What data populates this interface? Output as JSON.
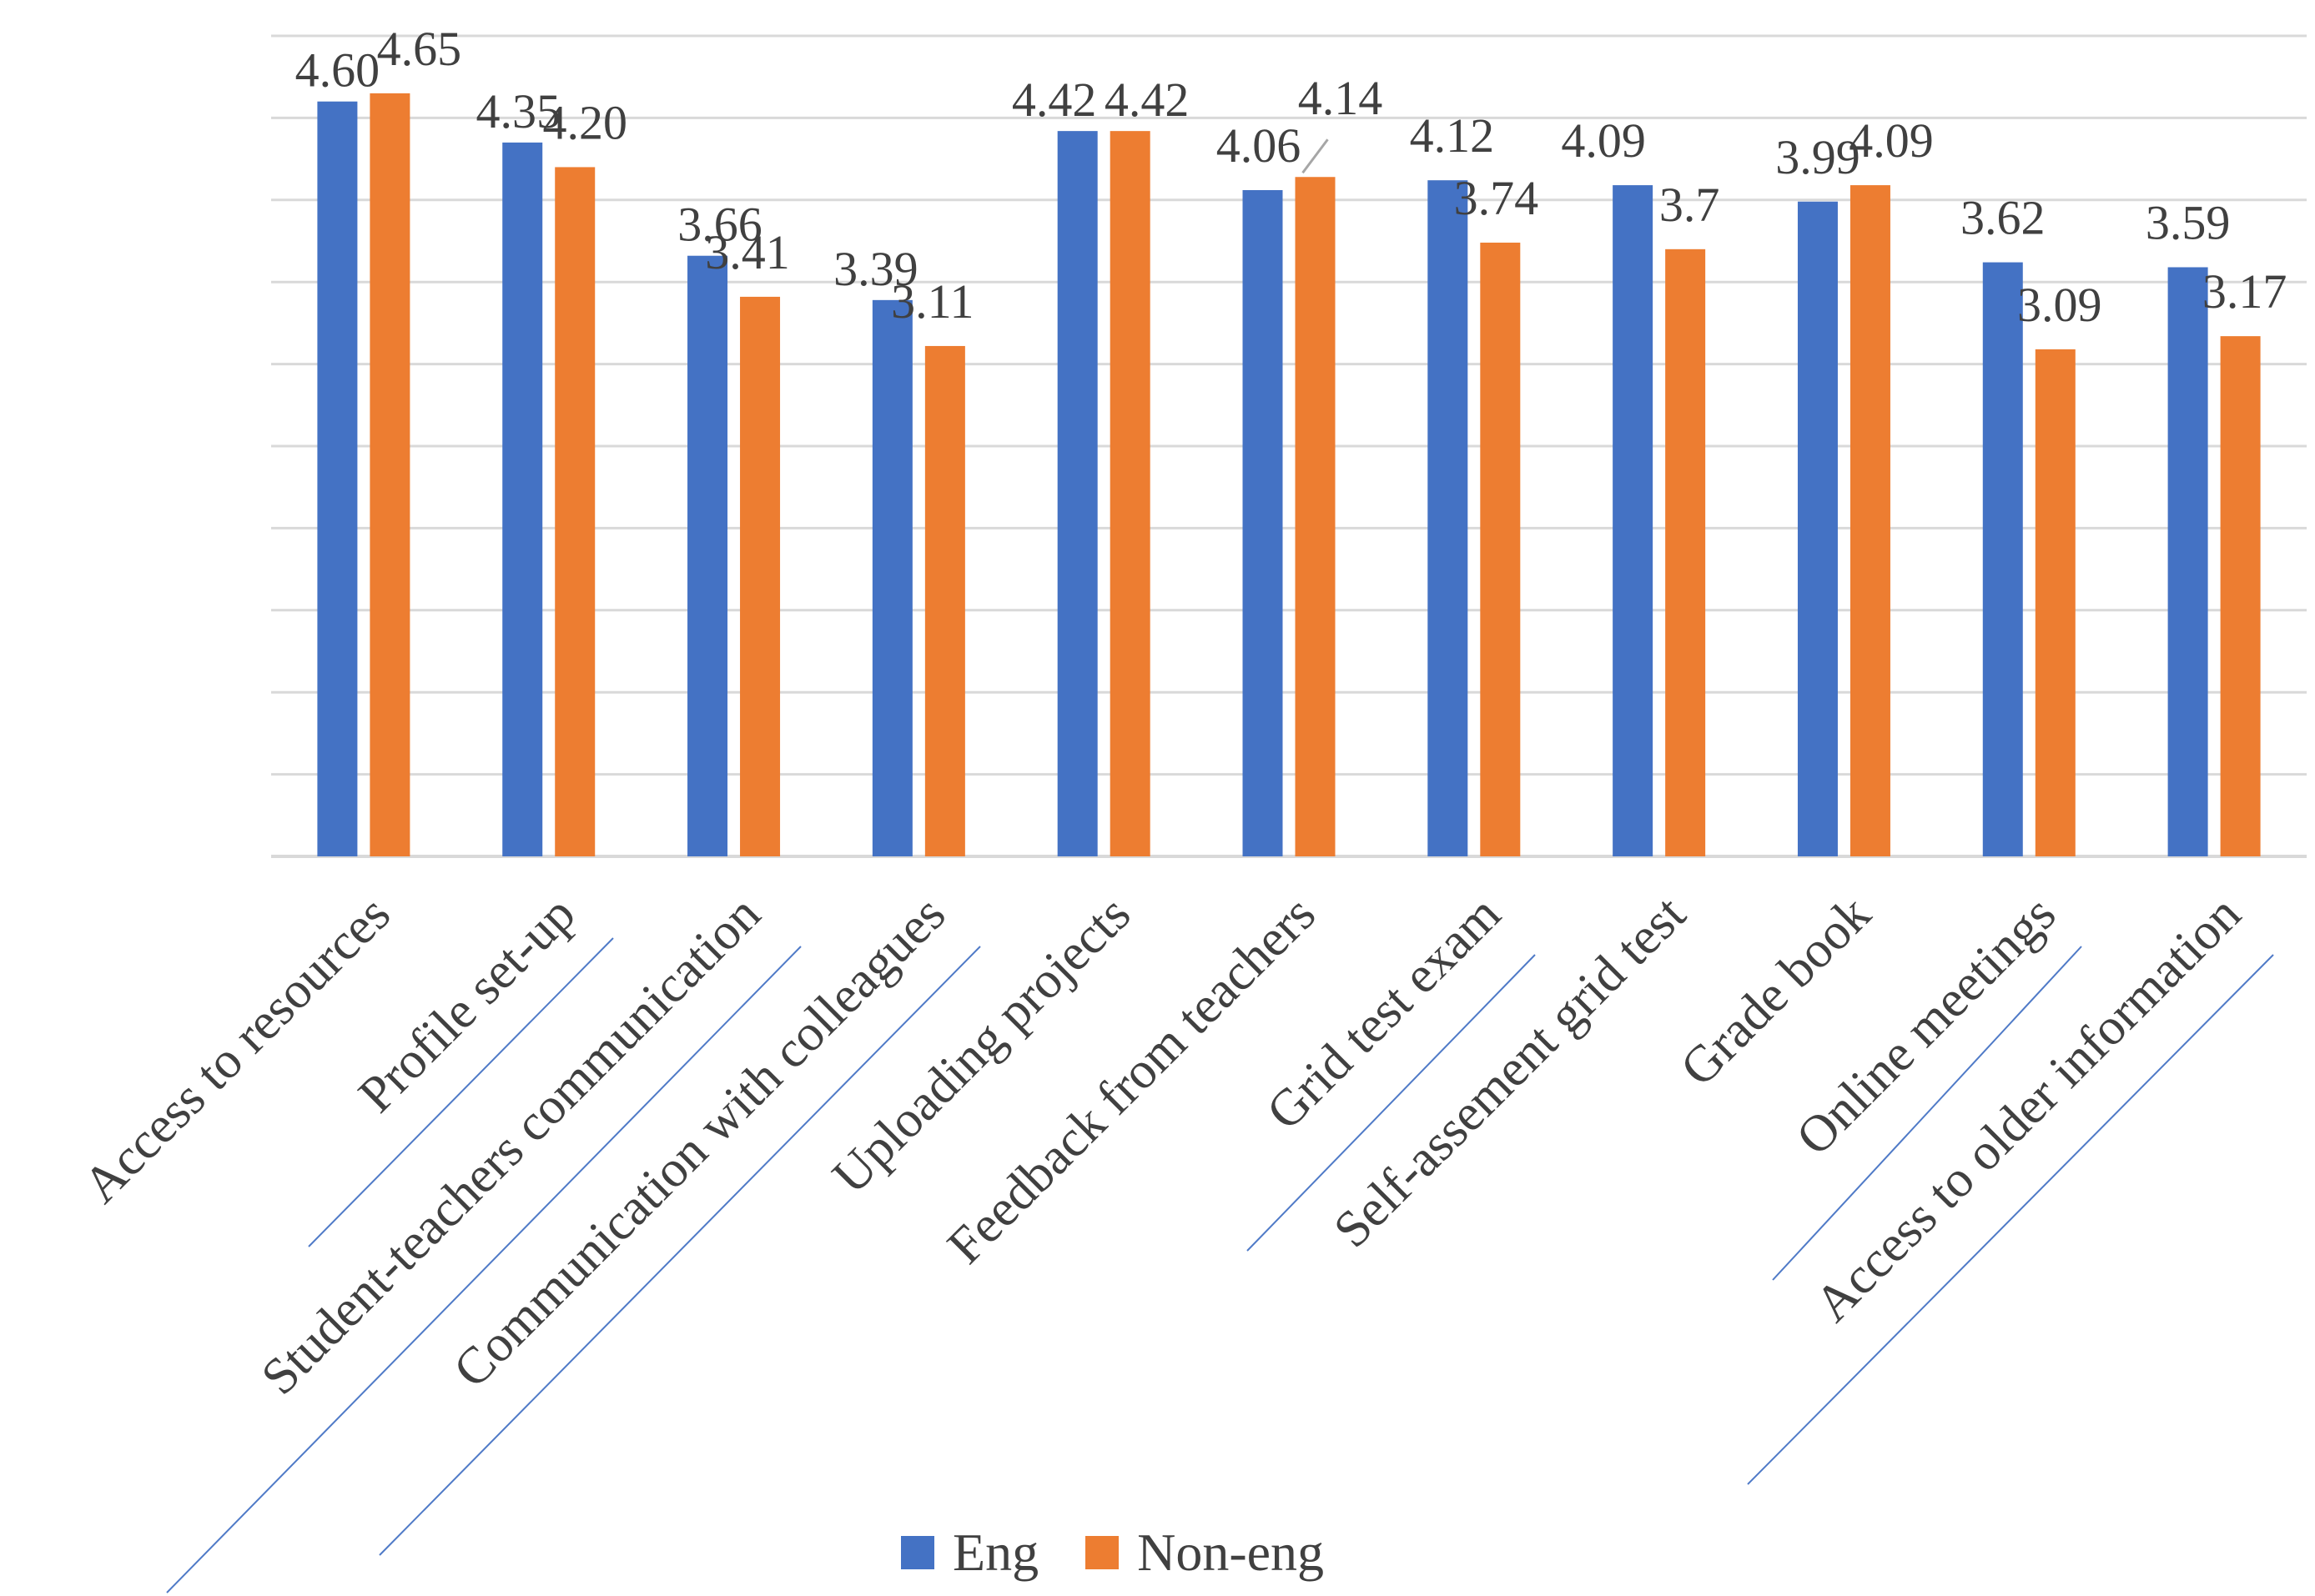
{
  "chart_data": {
    "type": "bar",
    "title": "",
    "xlabel": "",
    "ylabel": "",
    "ylim": [
      0,
      5
    ],
    "grid": true,
    "legend_position": "bottom",
    "categories": [
      "Access to resources",
      "Profile set-up",
      "Student-teachers communication",
      "Communication with colleagues",
      "Uploading projects",
      "Feedback from teachers",
      "Grid test exam",
      "Self-assement grid test",
      "Grade book",
      "Online meetings",
      "Access to older information"
    ],
    "series": [
      {
        "name": "Eng",
        "color": "#4472c4",
        "values": [
          4.6,
          4.35,
          3.66,
          3.39,
          4.42,
          4.06,
          4.12,
          4.09,
          3.99,
          3.62,
          3.59
        ],
        "labels": [
          "4.60",
          "4.35",
          "3.66",
          "3.39",
          "4.42",
          "4.06",
          "4.12",
          "4.09",
          "3.99",
          "3.62",
          "3.59"
        ]
      },
      {
        "name": "Non-eng",
        "color": "#ed7d31",
        "values": [
          4.65,
          4.2,
          3.41,
          3.11,
          4.42,
          4.14,
          3.74,
          3.7,
          4.09,
          3.09,
          3.17
        ],
        "labels": [
          "4.65",
          "4.20",
          "3.41",
          "3.11",
          "4.42",
          "4.14",
          "3.74",
          "3.7",
          "4.09",
          "3.09",
          "3.17"
        ]
      }
    ]
  }
}
